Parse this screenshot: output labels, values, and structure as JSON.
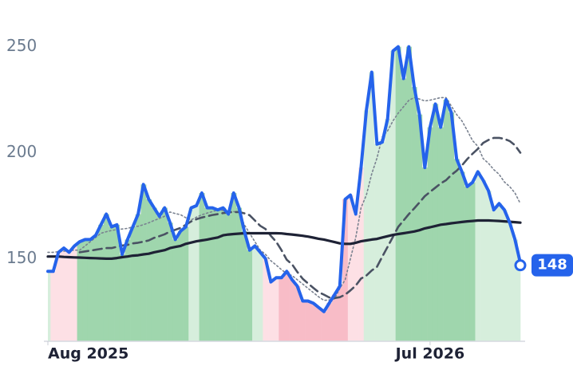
{
  "chart_data": {
    "type": "line",
    "categories": [
      "Aug 2025",
      null,
      null,
      null,
      null,
      null,
      null,
      null,
      null,
      null,
      null,
      null,
      null,
      null,
      null,
      null,
      null,
      null,
      null,
      null,
      null,
      null,
      null,
      null,
      null,
      null,
      null,
      null,
      null,
      null,
      null,
      null,
      null,
      null,
      null,
      null,
      null,
      null,
      null,
      null,
      null,
      null,
      null,
      null,
      null,
      null,
      null,
      null,
      null,
      null,
      null,
      null,
      null,
      null,
      null,
      null,
      null,
      null,
      null,
      null,
      null,
      null,
      null,
      null,
      null,
      null,
      null,
      null,
      null,
      null,
      null,
      null,
      "Jul 2026",
      null,
      null,
      null,
      null,
      null,
      null,
      null,
      null,
      null,
      null,
      null,
      null,
      null,
      null,
      null,
      null,
      null
    ],
    "ylim": [
      111,
      257
    ],
    "yticks": [
      150,
      200,
      250
    ],
    "fill_colors": [
      "#d6eedc",
      "#fde0e5",
      "#fde0e5",
      "#fde0e5",
      "#fde0e5",
      "#fde0e5",
      "#9fd6ad",
      "#9fd6ad",
      "#9fd6ad",
      "#9fd6ad",
      "#9fd6ad",
      "#9fd6ad",
      "#9fd6ad",
      "#9fd6ad",
      "#9fd6ad",
      "#9fd6ad",
      "#9fd6ad",
      "#9fd6ad",
      "#9fd6ad",
      "#9fd6ad",
      "#9fd6ad",
      "#9fd6ad",
      "#9fd6ad",
      "#9fd6ad",
      "#9fd6ad",
      "#9fd6ad",
      "#9fd6ad",
      "#d6eedc",
      "#d6eedc",
      "#9fd6ad",
      "#9fd6ad",
      "#9fd6ad",
      "#9fd6ad",
      "#9fd6ad",
      "#9fd6ad",
      "#9fd6ad",
      "#9fd6ad",
      "#9fd6ad",
      "#9fd6ad",
      "#d6eedc",
      "#d6eedc",
      "#fde0e5",
      "#fde0e5",
      "#fde0e5",
      "#f8bcc7",
      "#f8bcc7",
      "#f8bcc7",
      "#f8bcc7",
      "#f8bcc7",
      "#f8bcc7",
      "#f8bcc7",
      "#f8bcc7",
      "#f8bcc7",
      "#f8bcc7",
      "#f8bcc7",
      "#f8bcc7",
      "#f8bcc7",
      "#fde0e5",
      "#fde0e5",
      "#fde0e5",
      "#d6eedc",
      "#d6eedc",
      "#d6eedc",
      "#d6eedc",
      "#d6eedc",
      "#d6eedc",
      "#9fd6ad",
      "#9fd6ad",
      "#9fd6ad",
      "#9fd6ad",
      "#9fd6ad",
      "#9fd6ad",
      "#9fd6ad",
      "#9fd6ad",
      "#9fd6ad",
      "#9fd6ad",
      "#9fd6ad",
      "#9fd6ad",
      "#9fd6ad",
      "#9fd6ad",
      "#9fd6ad",
      "#d6eedc",
      "#d6eedc",
      "#d6eedc",
      "#d6eedc",
      "#d6eedc",
      "#d6eedc",
      "#d6eedc",
      "#d6eedc",
      "#d6eedc"
    ],
    "series": [
      {
        "color": "#7a8290",
        "style": "dot",
        "width": 1.6,
        "values": [
          153,
          153,
          153.3,
          153.5,
          153.8,
          154,
          154,
          156,
          158,
          160,
          162,
          162.7,
          163.3,
          163.7,
          164,
          164.3,
          165,
          165.3,
          166,
          166.9,
          168,
          169,
          170,
          172,
          171.3,
          170.7,
          169.3,
          168.3,
          169.6,
          170.7,
          171.5,
          172.2,
          173,
          172.7,
          172.3,
          172.2,
          172,
          166,
          162,
          158,
          154,
          152,
          149,
          147,
          144.8,
          143,
          142,
          140,
          138,
          136,
          134,
          132,
          130.3,
          130.5,
          131,
          136,
          140,
          150,
          160,
          174,
          180,
          190,
          197.5,
          207.5,
          210.3,
          215,
          218.7,
          221.7,
          224.7,
          226,
          225.3,
          224.4,
          224.8,
          225.4,
          226,
          226,
          222,
          218,
          215,
          210.5,
          205.7,
          203,
          197.2,
          195,
          192,
          189.8,
          186.2,
          184,
          181,
          176
        ]
      },
      {
        "color": "#4a5263",
        "style": "dash",
        "width": 2.6,
        "values": [
          null,
          null,
          null,
          null,
          null,
          null,
          153,
          153.4,
          153.8,
          154.2,
          154.6,
          155,
          155,
          155.6,
          156.2,
          156.5,
          157.2,
          157.5,
          158,
          158.6,
          159.8,
          160.6,
          161.5,
          162.8,
          163.6,
          164.5,
          166,
          167.6,
          168.6,
          169.4,
          170,
          170.6,
          171,
          171.5,
          171.8,
          172,
          172,
          171.4,
          170.5,
          168,
          165.5,
          164,
          160.8,
          158,
          154,
          149.5,
          147.3,
          143.7,
          140.5,
          138.3,
          136.2,
          134.2,
          133,
          131.7,
          131.4,
          131.8,
          133,
          135,
          137.3,
          140.6,
          142,
          144.4,
          146.2,
          151,
          155.6,
          160.3,
          165,
          168,
          171,
          173.7,
          176.5,
          179.5,
          181.5,
          183.5,
          185.5,
          187,
          189.5,
          191.5,
          194,
          197,
          199.5,
          201.8,
          204.6,
          206,
          207,
          207,
          206.5,
          205.5,
          203.5,
          200
        ]
      },
      {
        "color": "#1e2235",
        "style": "solid",
        "width": 3.2,
        "values": [
          151,
          151,
          151,
          150.8,
          150.7,
          150.6,
          150.5,
          150.4,
          150.3,
          150.2,
          150.1,
          150,
          150,
          150.3,
          150.7,
          151,
          151.4,
          151.6,
          152,
          152.3,
          153,
          153.5,
          154,
          155,
          155.5,
          156,
          157,
          157.6,
          158.2,
          158.6,
          159,
          159.5,
          160,
          161,
          161.4,
          161.6,
          161.8,
          162,
          162,
          162,
          162,
          162,
          162,
          162,
          161.9,
          161.6,
          161.4,
          161.1,
          160.8,
          160.4,
          159.9,
          159.4,
          159,
          158.4,
          157.8,
          157.2,
          157,
          157,
          157.5,
          158.2,
          158.6,
          159,
          159.3,
          160,
          160.6,
          161.2,
          161.6,
          162,
          162.4,
          162.8,
          163.4,
          164.3,
          164.8,
          165.4,
          166,
          166.3,
          166.7,
          167,
          167.3,
          167.6,
          167.8,
          168,
          168,
          168,
          167.9,
          167.8,
          167.6,
          167.4,
          167.2,
          167
        ]
      },
      {
        "color": "#2563eb",
        "style": "solid",
        "width": 4,
        "badge": true,
        "values": [
          144,
          144,
          153,
          155,
          153,
          156,
          158,
          159,
          159,
          161,
          166,
          171,
          165,
          166,
          152,
          159,
          165,
          171,
          185,
          178,
          174,
          170,
          174,
          167,
          159,
          163,
          165,
          174,
          175,
          181,
          174,
          174,
          173,
          174,
          171,
          181,
          174,
          163,
          154,
          156,
          153,
          150,
          139,
          141,
          141,
          144,
          140,
          137,
          130,
          130,
          129,
          127,
          125,
          129,
          133,
          137,
          178,
          180,
          171,
          193,
          220,
          238,
          204,
          205,
          216,
          248,
          250,
          235,
          250,
          231,
          218,
          193,
          212,
          223,
          212,
          225,
          219,
          197,
          191,
          184,
          186,
          191,
          187,
          182,
          173,
          176,
          173,
          167,
          159,
          148
        ]
      }
    ]
  }
}
